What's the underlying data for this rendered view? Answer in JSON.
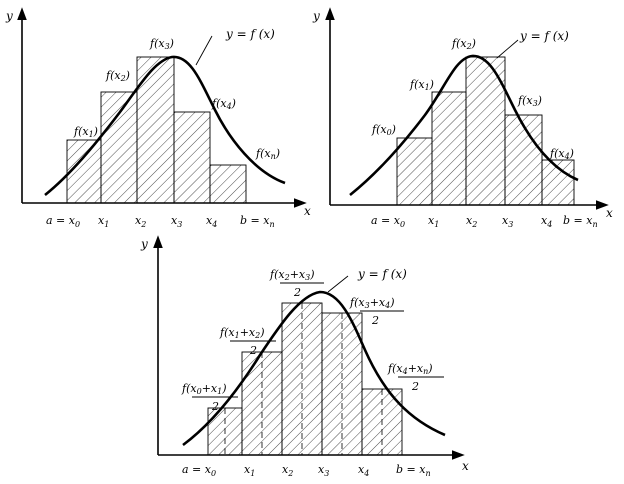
{
  "panels": [
    {
      "id": "left-endpoint",
      "y_axis": "y",
      "x_axis": "x",
      "curve_label": "y = f (x)",
      "x_ticks": [
        "a = x",
        "x",
        "x",
        "x",
        "x",
        "b = x"
      ],
      "x_ticks_sub": [
        "0",
        "1",
        "2",
        "3",
        "4",
        "n"
      ],
      "heights_labels": [
        {
          "pre": "f(x",
          "sub": "1",
          "post": ")"
        },
        {
          "pre": "f(x",
          "sub": "2",
          "post": ")"
        },
        {
          "pre": "f(x",
          "sub": "3",
          "post": ")"
        },
        {
          "pre": "f(x",
          "sub": "4",
          "post": ")"
        },
        {
          "pre": "f(x",
          "sub": "n",
          "post": ")"
        }
      ]
    },
    {
      "id": "right-endpoint",
      "y_axis": "y",
      "x_axis": "x",
      "curve_label": "y = f (x)",
      "x_ticks": [
        "a = x",
        "x",
        "x",
        "x",
        "x",
        "b = x"
      ],
      "x_ticks_sub": [
        "0",
        "1",
        "2",
        "3",
        "4",
        "n"
      ],
      "heights_labels": [
        {
          "pre": "f(x",
          "sub": "0",
          "post": ")"
        },
        {
          "pre": "f(x",
          "sub": "1",
          "post": ")"
        },
        {
          "pre": "f(x",
          "sub": "2",
          "post": ")"
        },
        {
          "pre": "f(x",
          "sub": "3",
          "post": ")"
        },
        {
          "pre": "f(x",
          "sub": "4",
          "post": ")"
        }
      ]
    },
    {
      "id": "midpoint",
      "y_axis": "y",
      "x_axis": "x",
      "curve_label": "y = f (x)",
      "x_ticks": [
        "a = x",
        "x",
        "x",
        "x",
        "x",
        "b = x"
      ],
      "x_ticks_sub": [
        "0",
        "1",
        "2",
        "3",
        "4",
        "n"
      ],
      "midpoint_labels": [
        {
          "a": "x",
          "asub": "0",
          "b": "x",
          "bsub": "1",
          "den": "2"
        },
        {
          "a": "x",
          "asub": "1",
          "b": "x",
          "bsub": "2",
          "den": "2"
        },
        {
          "a": "x",
          "asub": "2",
          "b": "x",
          "bsub": "3",
          "den": "2"
        },
        {
          "a": "x",
          "asub": "3",
          "b": "x",
          "bsub": "4",
          "den": "2"
        },
        {
          "a": "x",
          "asub": "4",
          "b": "x",
          "bsub": "n",
          "den": "2"
        }
      ]
    }
  ]
}
